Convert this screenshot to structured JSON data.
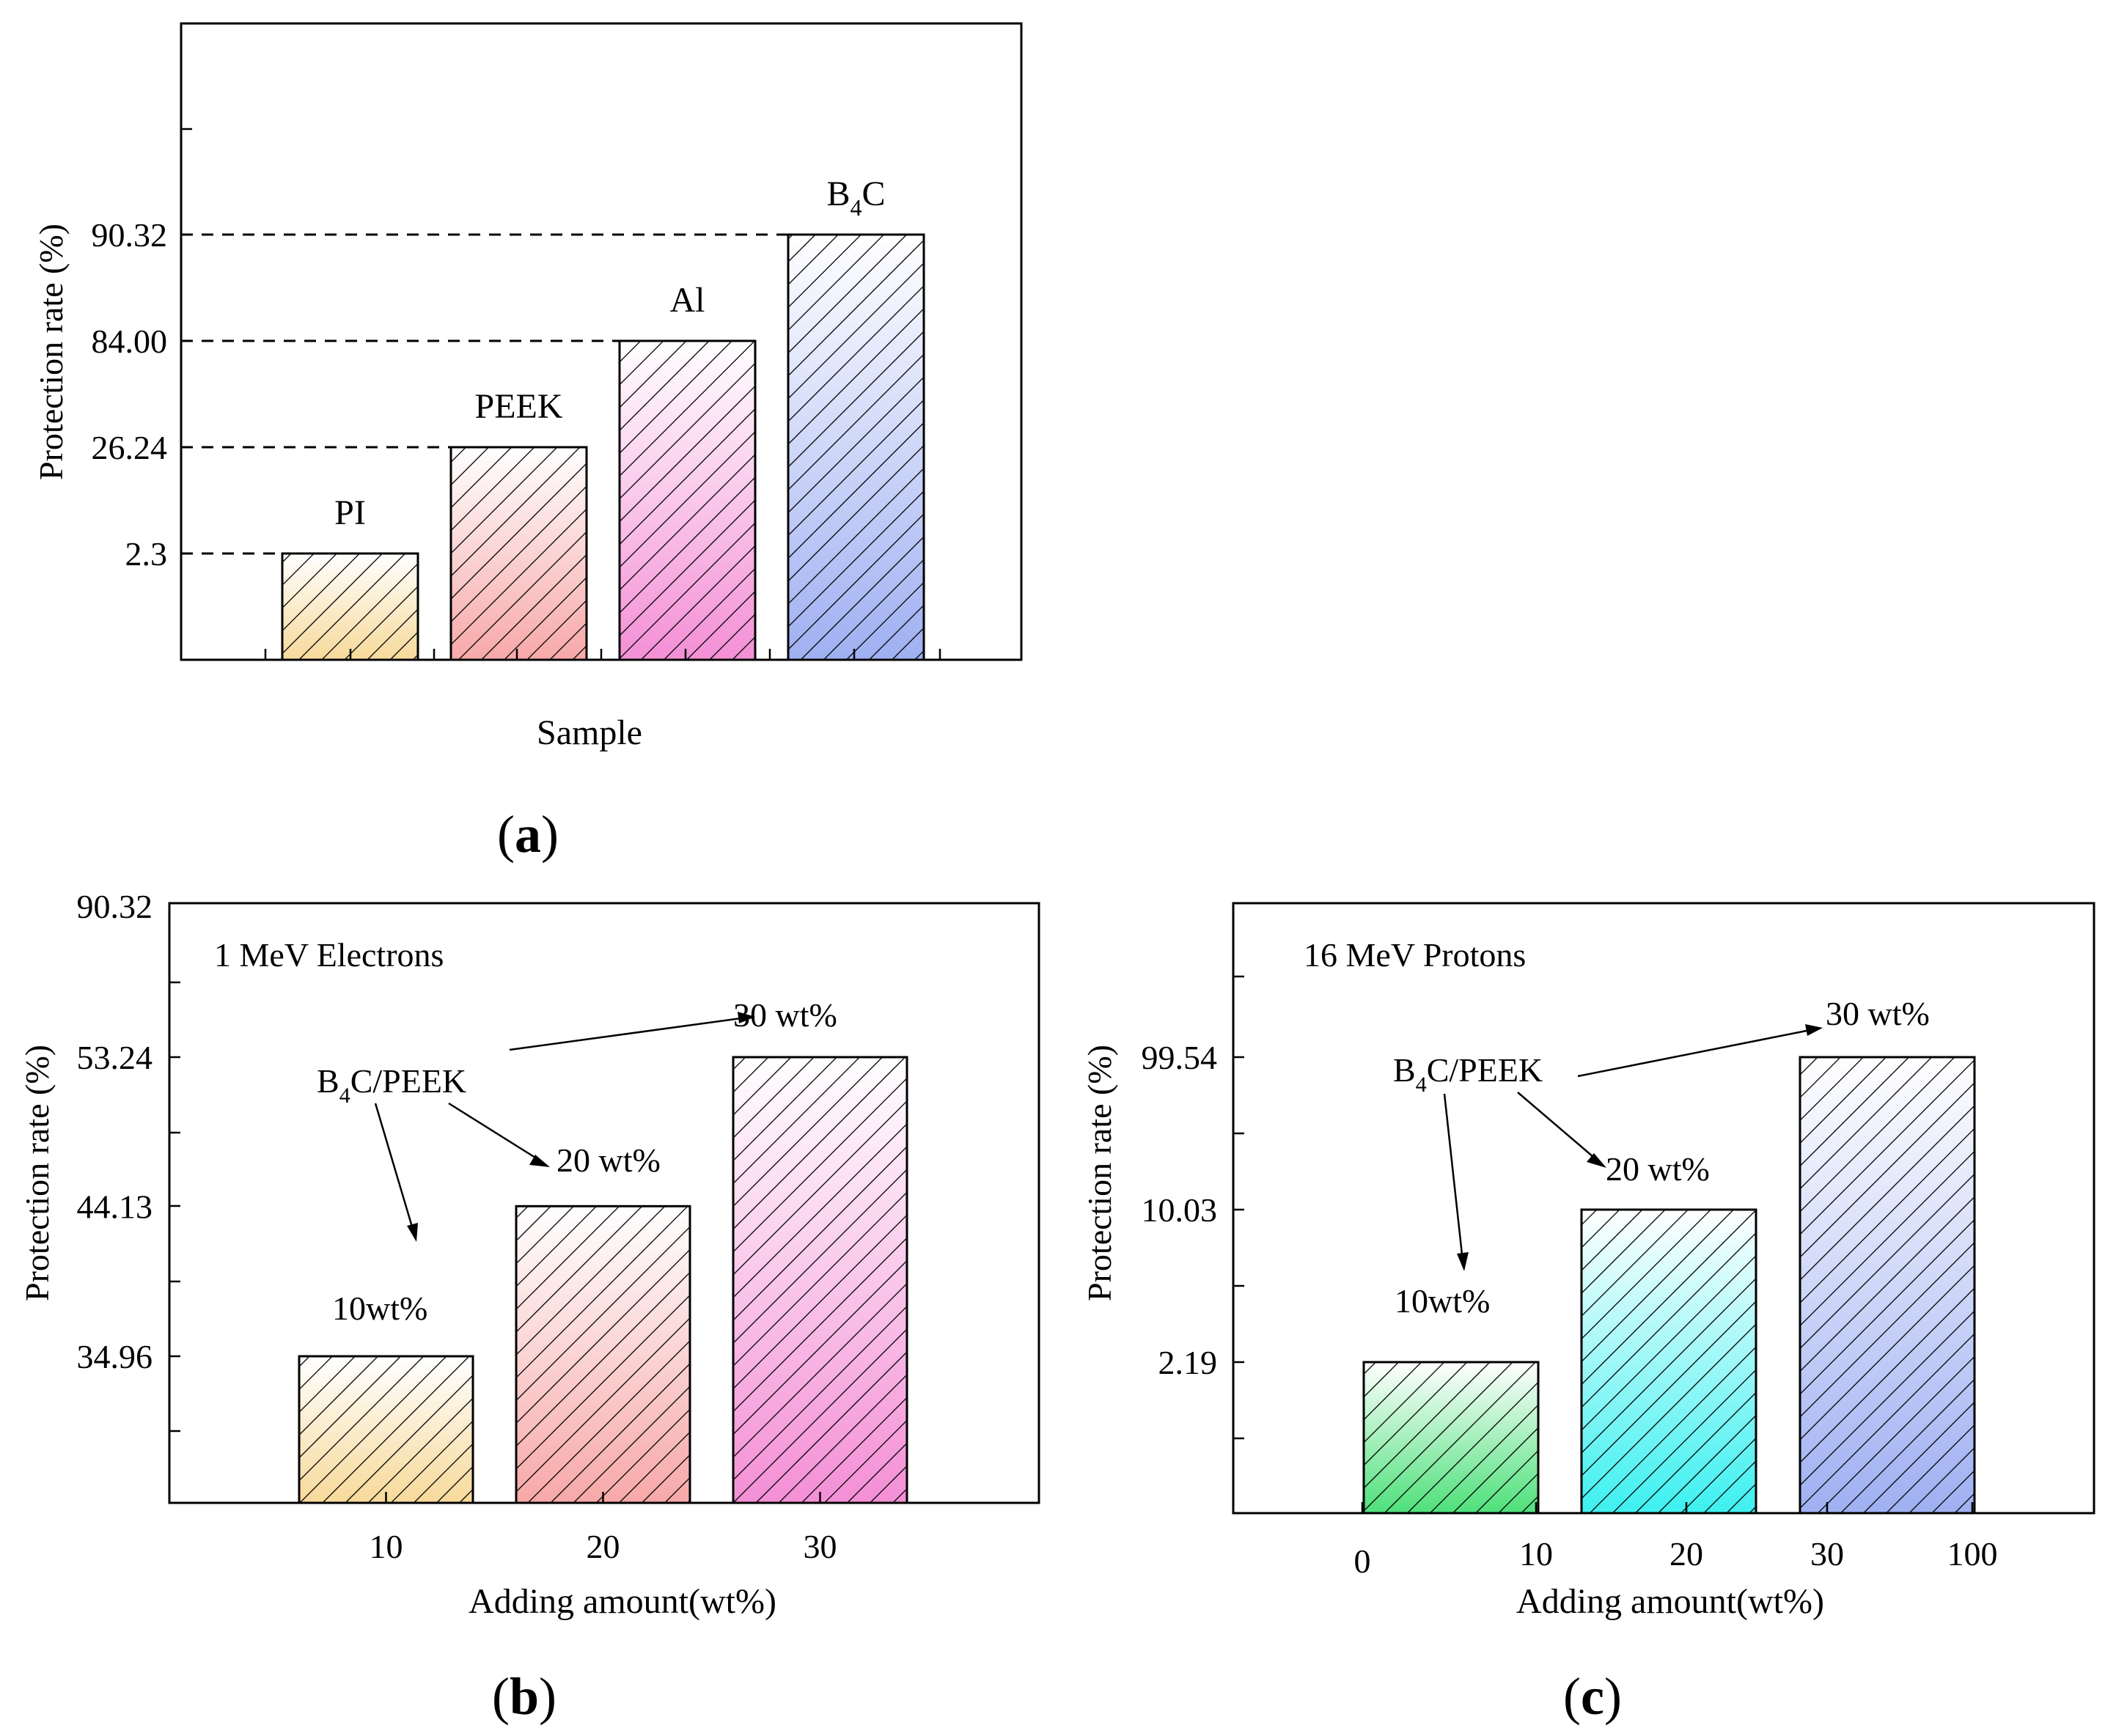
{
  "chart_data": [
    {
      "id": "a",
      "type": "bar",
      "panel_label": "a",
      "xlabel": "Sample",
      "ylabel": "Protection rate (%)",
      "categories": [
        "PI",
        "PEEK",
        "Al",
        "B4C"
      ],
      "category_labels": [
        {
          "main": "PI",
          "sub": "",
          "tail": ""
        },
        {
          "main": "PEEK",
          "sub": "",
          "tail": ""
        },
        {
          "main": "Al",
          "sub": "",
          "tail": ""
        },
        {
          "main": "B",
          "sub": "4",
          "tail": "C"
        }
      ],
      "values": [
        2.3,
        26.24,
        84.0,
        90.32
      ],
      "value_tick_labels": [
        "2.3",
        "26.24",
        "84.00",
        "90.32"
      ],
      "y_axis_scale": "categorical-levels",
      "colors": [
        "#f7d99a",
        "#f7a8a8",
        "#f48fd6",
        "#9fb0f2"
      ],
      "hatched": true
    },
    {
      "id": "b",
      "type": "bar",
      "panel_label": "b",
      "title": "1 MeV Electrons",
      "xlabel": "Adding amount(wt%)",
      "ylabel": "Protection rate (%)",
      "categories": [
        "10",
        "20",
        "30"
      ],
      "values": [
        34.96,
        44.13,
        53.24
      ],
      "yticks": [
        "34.96",
        "44.13",
        "53.24",
        "90.32"
      ],
      "bar_labels": [
        "10wt%",
        "20 wt%",
        "30 wt%"
      ],
      "annotation": {
        "main": "B",
        "sub": "4",
        "tail": "C/PEEK"
      },
      "colors": [
        "#f7d99a",
        "#f7a8a8",
        "#f48fd6"
      ],
      "hatched": true
    },
    {
      "id": "c",
      "type": "bar",
      "panel_label": "c",
      "title": "16 MeV Protons",
      "xlabel": "Adding amount(wt%)",
      "ylabel": "Protection rate (%)",
      "categories": [
        "10",
        "20",
        "30"
      ],
      "xticks": [
        "0",
        "10",
        "20",
        "30",
        "100"
      ],
      "values": [
        2.19,
        10.03,
        99.54
      ],
      "yticks": [
        "2.19",
        "10.03",
        "99.54"
      ],
      "bar_labels": [
        "10wt%",
        "20 wt%",
        "30 wt%"
      ],
      "annotation": {
        "main": "B",
        "sub": "4",
        "tail": "C/PEEK"
      },
      "colors": [
        "#4ee07a",
        "#3ef0f0",
        "#9fb0f2"
      ],
      "hatched": true
    }
  ]
}
